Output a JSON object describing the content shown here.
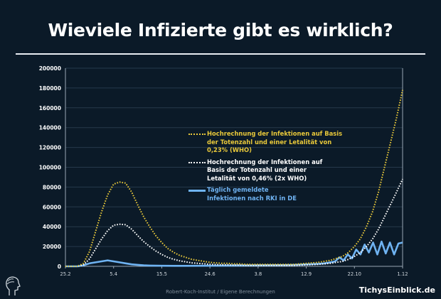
{
  "title": "Wieviele Infizierte gibt es wirklich?",
  "source": "Robert-Koch-Institut / Eigene Berechnungen",
  "brand": "TichysEinblick.de",
  "chart_data": {
    "type": "line",
    "title": "Wieviele Infizierte gibt es wirklich?",
    "xlabel": "",
    "ylabel": "",
    "ylim": [
      0,
      200000
    ],
    "xlim_days": [
      0,
      280
    ],
    "y_ticks": [
      "0",
      "20000",
      "40000",
      "60000",
      "80000",
      "100000",
      "120000",
      "140000",
      "160000",
      "180000",
      "200000"
    ],
    "x_ticks": [
      "25.2",
      "5.4",
      "15.5",
      "24.6",
      "3.8",
      "12.9",
      "22.10",
      "1.12"
    ],
    "grid": true,
    "legend_position": "center-right",
    "series": [
      {
        "name": "Hochrechnung der Infektionen auf Basis der Totenzahl und einer Letalität von 0,23% (WHO)",
        "color": "#e8c83a",
        "style": "dotted",
        "x": [
          0,
          5,
          10,
          15,
          20,
          25,
          30,
          35,
          40,
          45,
          50,
          55,
          60,
          65,
          70,
          75,
          80,
          85,
          90,
          95,
          100,
          105,
          110,
          115,
          120,
          125,
          130,
          135,
          140,
          145,
          150,
          155,
          160,
          165,
          170,
          175,
          180,
          185,
          190,
          195,
          200,
          205,
          210,
          215,
          220,
          225,
          230,
          235,
          240,
          245,
          250,
          255,
          260,
          265,
          270,
          275,
          280
        ],
        "values": [
          0,
          0,
          0,
          3000,
          15000,
          35000,
          55000,
          72000,
          83000,
          85000,
          84000,
          75000,
          62000,
          50000,
          40000,
          31000,
          24000,
          18000,
          14000,
          11000,
          9000,
          7000,
          6000,
          5000,
          4000,
          3500,
          3000,
          3000,
          2500,
          2500,
          2000,
          2000,
          2000,
          2000,
          2000,
          2000,
          2000,
          2000,
          2000,
          2500,
          3000,
          3500,
          4000,
          5000,
          6000,
          8000,
          10000,
          14000,
          20000,
          28000,
          40000,
          55000,
          75000,
          100000,
          125000,
          150000,
          178000
        ]
      },
      {
        "name": "Hochrechnung der Infektionen auf Basis der Totenzahl und einer Letalität von 0,46% (2x WHO)",
        "color": "#ffffff",
        "style": "dotted",
        "x": [
          0,
          5,
          10,
          15,
          20,
          25,
          30,
          35,
          40,
          45,
          50,
          55,
          60,
          65,
          70,
          75,
          80,
          85,
          90,
          95,
          100,
          105,
          110,
          115,
          120,
          125,
          130,
          135,
          140,
          145,
          150,
          155,
          160,
          165,
          170,
          175,
          180,
          185,
          190,
          195,
          200,
          205,
          210,
          215,
          220,
          225,
          230,
          235,
          240,
          245,
          250,
          255,
          260,
          265,
          270,
          275,
          280
        ],
        "values": [
          0,
          0,
          0,
          1500,
          7500,
          17500,
          27500,
          36000,
          41500,
          42500,
          42000,
          37500,
          31000,
          25000,
          20000,
          15500,
          12000,
          9000,
          7000,
          5500,
          4500,
          3500,
          3000,
          2500,
          2000,
          1750,
          1500,
          1500,
          1250,
          1250,
          1000,
          1000,
          1000,
          1000,
          1000,
          1000,
          1000,
          1000,
          1000,
          1250,
          1500,
          1750,
          2000,
          2500,
          3000,
          4000,
          5000,
          7000,
          10000,
          14000,
          20000,
          27500,
          37500,
          50000,
          62500,
          75000,
          88000
        ]
      },
      {
        "name": "Täglich gemeldete Infektionen nach RKI in DE",
        "color": "#6fb3f2",
        "style": "solid",
        "x": [
          0,
          5,
          10,
          15,
          20,
          25,
          30,
          35,
          40,
          45,
          50,
          55,
          60,
          65,
          70,
          80,
          90,
          100,
          120,
          140,
          160,
          180,
          190,
          200,
          210,
          215,
          220,
          224,
          227.5,
          231,
          234.5,
          238,
          241.5,
          245,
          248.5,
          252,
          255.5,
          259,
          262.5,
          266,
          269.5,
          273,
          276.5,
          280
        ],
        "values": [
          0,
          0,
          0,
          1000,
          3000,
          4000,
          5000,
          6000,
          5000,
          4000,
          3000,
          2000,
          1500,
          1000,
          800,
          600,
          500,
          500,
          600,
          800,
          1000,
          1200,
          1500,
          2000,
          2500,
          3000,
          4000,
          5000,
          9000,
          6000,
          12000,
          8000,
          17000,
          12000,
          22000,
          14000,
          24000,
          12000,
          25000,
          13000,
          24000,
          12000,
          23000,
          24000
        ]
      }
    ]
  }
}
